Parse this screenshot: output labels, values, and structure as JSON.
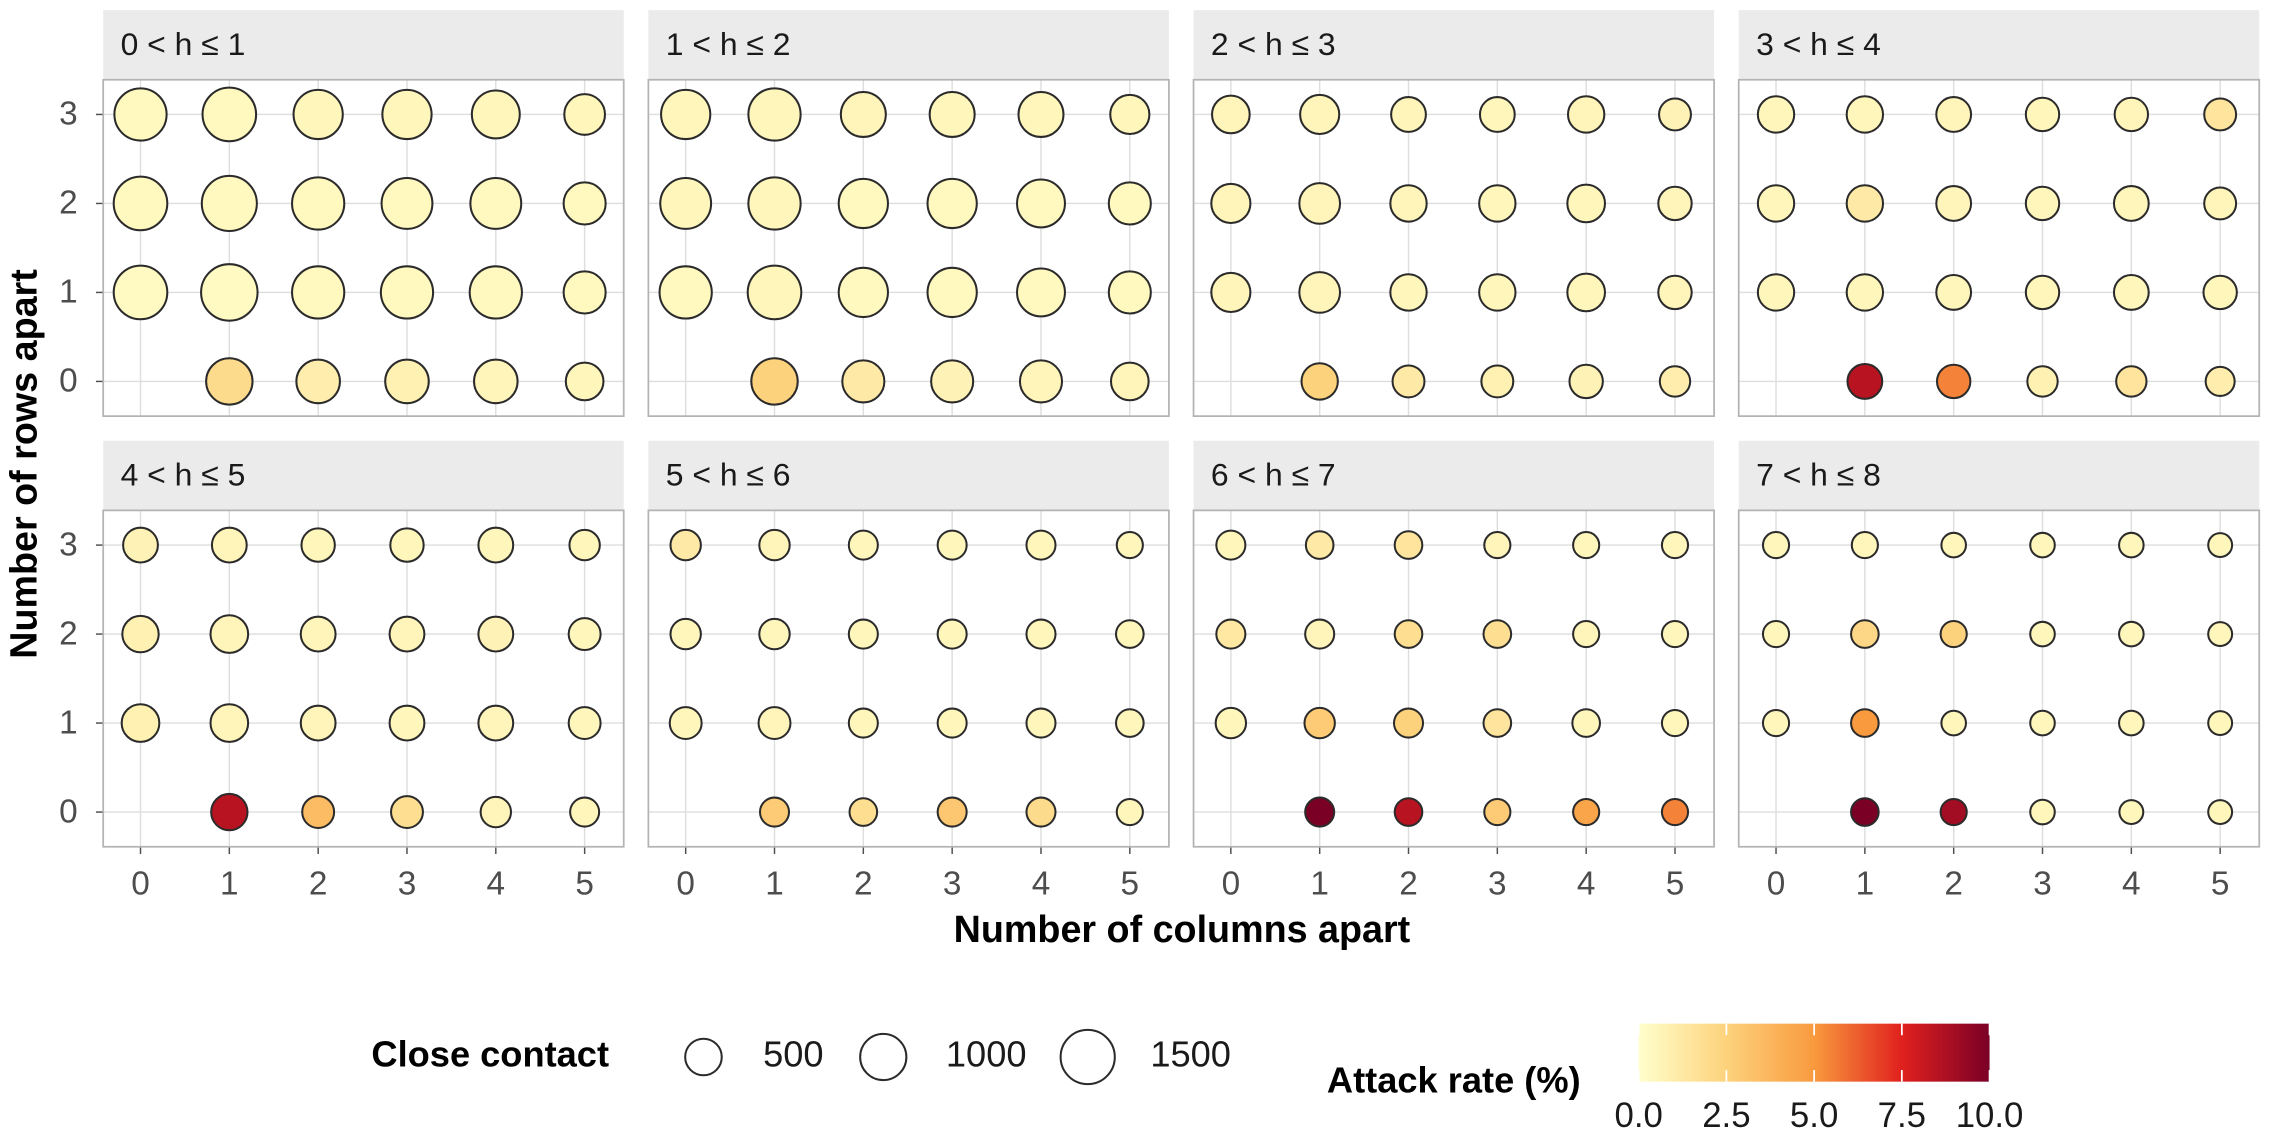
{
  "chart_data": {
    "type": "bubble",
    "x_label": "Number of columns apart",
    "y_label": "Number of rows apart",
    "xlim": [
      -0.42,
      5.44
    ],
    "xticks": [
      0,
      1,
      2,
      3,
      4,
      5
    ],
    "ylim": [
      -0.39,
      3.39
    ],
    "yticks": [
      0,
      1,
      2,
      3
    ],
    "grid": true,
    "x": [
      1,
      2,
      3,
      4,
      5,
      0,
      1,
      2,
      3,
      4,
      5,
      0,
      1,
      2,
      3,
      4,
      5,
      0,
      1,
      2,
      3,
      4,
      5
    ],
    "y": [
      0,
      0,
      0,
      0,
      0,
      1,
      1,
      1,
      1,
      1,
      1,
      2,
      2,
      2,
      2,
      2,
      2,
      3,
      3,
      3,
      3,
      3,
      3
    ],
    "size_legend": {
      "title": "Close contact",
      "values": [
        500,
        1000,
        1500
      ]
    },
    "color_legend": {
      "title": "Attack rate (%)",
      "lim": [
        0,
        10
      ],
      "colors": [
        "#ffffcc",
        "#fdd27c",
        "#f99a3e",
        "#e0201e",
        "#7a0026"
      ],
      "ticks": [
        {
          "value": 0,
          "label": "0.0"
        },
        2.5,
        {
          "value": 5,
          "label": "5.0"
        },
        7.5,
        {
          "value": 10,
          "label": "10.0"
        }
      ]
    },
    "panels": [
      {
        "title": "0 < h ≤ 1",
        "size": [
          1010,
          850,
          850,
          850,
          550,
          1460,
          1660,
          1370,
          1370,
          1370,
          770,
          1460,
          1560,
          1370,
          1280,
          1280,
          770,
          1370,
          1460,
          1180,
          1180,
          1100,
          700
        ],
        "rate": [
          2,
          1,
          0.8,
          0.6,
          0.5,
          0.3,
          0.3,
          0.4,
          0.4,
          0.4,
          0.4,
          0.4,
          0.4,
          0.4,
          0.4,
          0.4,
          0.4,
          0.4,
          0.4,
          0.5,
          0.5,
          0.5,
          0.5
        ]
      },
      {
        "title": "1 < h ≤ 2",
        "size": [
          1010,
          770,
          770,
          770,
          550,
          1370,
          1460,
          1180,
          1180,
          1100,
          770,
          1280,
          1370,
          1180,
          1180,
          1100,
          770,
          1180,
          1370,
          930,
          930,
          930,
          620
        ],
        "rate": [
          2.5,
          1.2,
          0.7,
          0.6,
          0.6,
          0.4,
          0.5,
          0.4,
          0.4,
          0.4,
          0.4,
          0.5,
          0.5,
          0.4,
          0.4,
          0.4,
          0.4,
          0.5,
          0.5,
          0.6,
          0.5,
          0.5,
          0.5
        ]
      },
      {
        "title": "2 < h ≤ 3",
        "size": [
          490,
          300,
          300,
          360,
          240,
          620,
          700,
          490,
          490,
          550,
          360,
          620,
          700,
          490,
          490,
          550,
          360,
          550,
          620,
          420,
          420,
          490,
          300
        ],
        "rate": [
          2.5,
          1.2,
          0.8,
          0.7,
          1,
          0.6,
          0.6,
          0.5,
          0.5,
          0.5,
          0.6,
          0.6,
          0.6,
          0.6,
          0.5,
          0.5,
          0.6,
          0.6,
          0.6,
          0.6,
          0.5,
          0.6,
          0.7
        ]
      },
      {
        "title": "3 < h ≤ 4",
        "size": [
          420,
          360,
          240,
          240,
          190,
          490,
          490,
          420,
          360,
          420,
          360,
          490,
          490,
          420,
          360,
          420,
          300,
          490,
          490,
          420,
          360,
          360,
          300
        ],
        "rate": [
          8.5,
          5.5,
          0.8,
          1.5,
          1,
          0.5,
          0.5,
          0.5,
          0.5,
          0.5,
          0.5,
          0.5,
          1.2,
          0.6,
          0.5,
          0.5,
          0.6,
          0.5,
          0.5,
          0.6,
          0.5,
          0.6,
          1.5
        ]
      },
      {
        "title": "4 < h ≤ 5",
        "size": [
          490,
          300,
          300,
          240,
          190,
          550,
          550,
          420,
          420,
          420,
          300,
          490,
          550,
          420,
          420,
          420,
          300,
          420,
          420,
          360,
          360,
          420,
          240
        ],
        "rate": [
          8.5,
          3.5,
          1.8,
          0.6,
          0.5,
          0.8,
          0.6,
          0.6,
          0.5,
          0.6,
          0.5,
          0.8,
          0.6,
          0.6,
          0.6,
          0.7,
          0.5,
          0.7,
          0.6,
          0.5,
          0.5,
          0.5,
          0.5
        ]
      },
      {
        "title": "5 < h ≤ 6",
        "size": [
          190,
          140,
          190,
          190,
          90,
          300,
          300,
          190,
          190,
          190,
          140,
          240,
          240,
          190,
          190,
          190,
          140,
          240,
          240,
          190,
          190,
          190,
          90
        ],
        "rate": [
          2.8,
          1.8,
          3,
          2,
          0.5,
          0.5,
          0.6,
          0.5,
          0.5,
          0.5,
          0.5,
          0.5,
          0.5,
          0.5,
          0.5,
          0.5,
          0.5,
          1.2,
          0.6,
          0.5,
          0.5,
          0.5,
          0.5
        ]
      },
      {
        "title": "6 < h ≤ 7",
        "size": [
          190,
          140,
          90,
          90,
          90,
          240,
          240,
          190,
          140,
          140,
          90,
          190,
          190,
          140,
          140,
          90,
          90,
          190,
          140,
          140,
          90,
          90,
          90
        ],
        "rate": [
          10,
          8.5,
          2.8,
          4.5,
          5.5,
          0.5,
          2.8,
          2.5,
          1.5,
          0.5,
          0.5,
          1.3,
          0.6,
          1.8,
          1.8,
          0.6,
          0.5,
          0.5,
          1.2,
          1.5,
          0.6,
          0.5,
          0.5
        ]
      },
      {
        "title": "7 < h ≤ 8",
        "size": [
          140,
          90,
          40,
          20,
          20,
          90,
          140,
          40,
          40,
          40,
          20,
          90,
          140,
          90,
          40,
          40,
          20,
          90,
          90,
          40,
          40,
          40,
          20
        ],
        "rate": [
          10,
          9,
          0.5,
          0.5,
          0.5,
          0.5,
          5,
          0.5,
          0.5,
          0.5,
          0.5,
          0.5,
          2.2,
          2.5,
          0.5,
          0.5,
          0.5,
          0.5,
          0.5,
          0.5,
          0.5,
          0.5,
          0.5
        ]
      }
    ]
  }
}
